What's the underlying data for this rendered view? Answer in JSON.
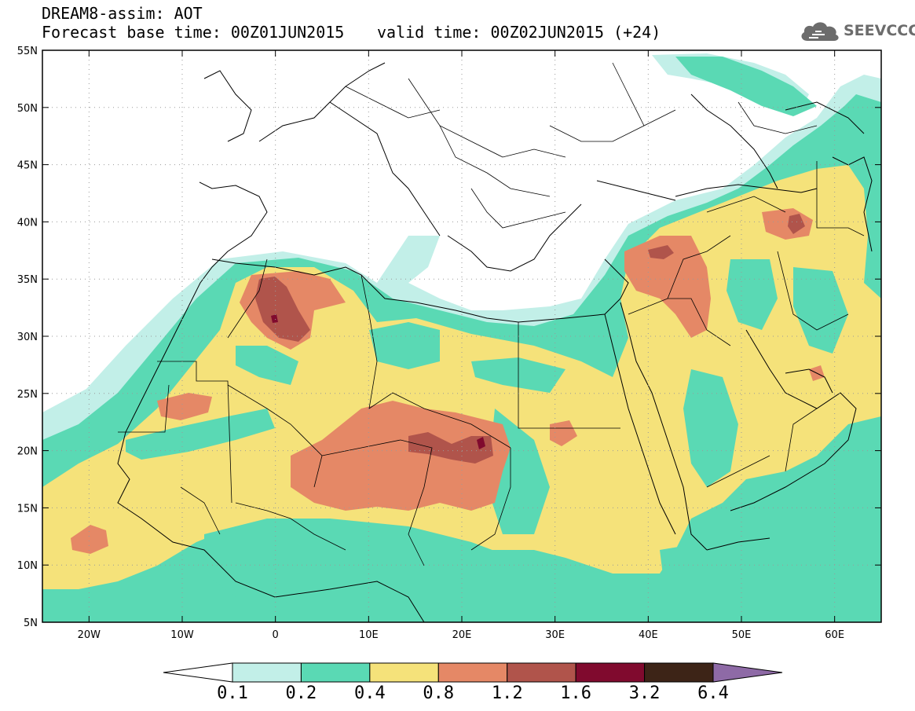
{
  "header": {
    "line1": "DREAM8-assim: AOT",
    "line2": "Forecast base time: 00Z01JUN2015",
    "valid": "valid time: 00Z02JUN2015 (+24)"
  },
  "logo": {
    "text": "SEEVCCC",
    "icon": "cloud-icon",
    "color": "#6c6c6c"
  },
  "map": {
    "lon_range": [
      -25,
      65
    ],
    "lat_range": [
      5,
      55
    ],
    "lon_ticks": [
      "20W",
      "10W",
      "0",
      "10E",
      "20E",
      "30E",
      "40E",
      "50E",
      "60E"
    ],
    "lat_ticks": [
      "55N",
      "50N",
      "45N",
      "40N",
      "35N",
      "30N",
      "25N",
      "20N",
      "15N",
      "10N",
      "5N"
    ],
    "grid": "dotted"
  },
  "colorbar": {
    "levels": [
      "0.1",
      "0.2",
      "0.4",
      "0.8",
      "1.2",
      "1.6",
      "3.2",
      "6.4"
    ],
    "colors": [
      "#ffffff",
      "#c2efe8",
      "#5ad9b4",
      "#f5e27a",
      "#e58866",
      "#b0544b",
      "#800a2e",
      "#3d2417",
      "#8e6aa6"
    ]
  }
}
